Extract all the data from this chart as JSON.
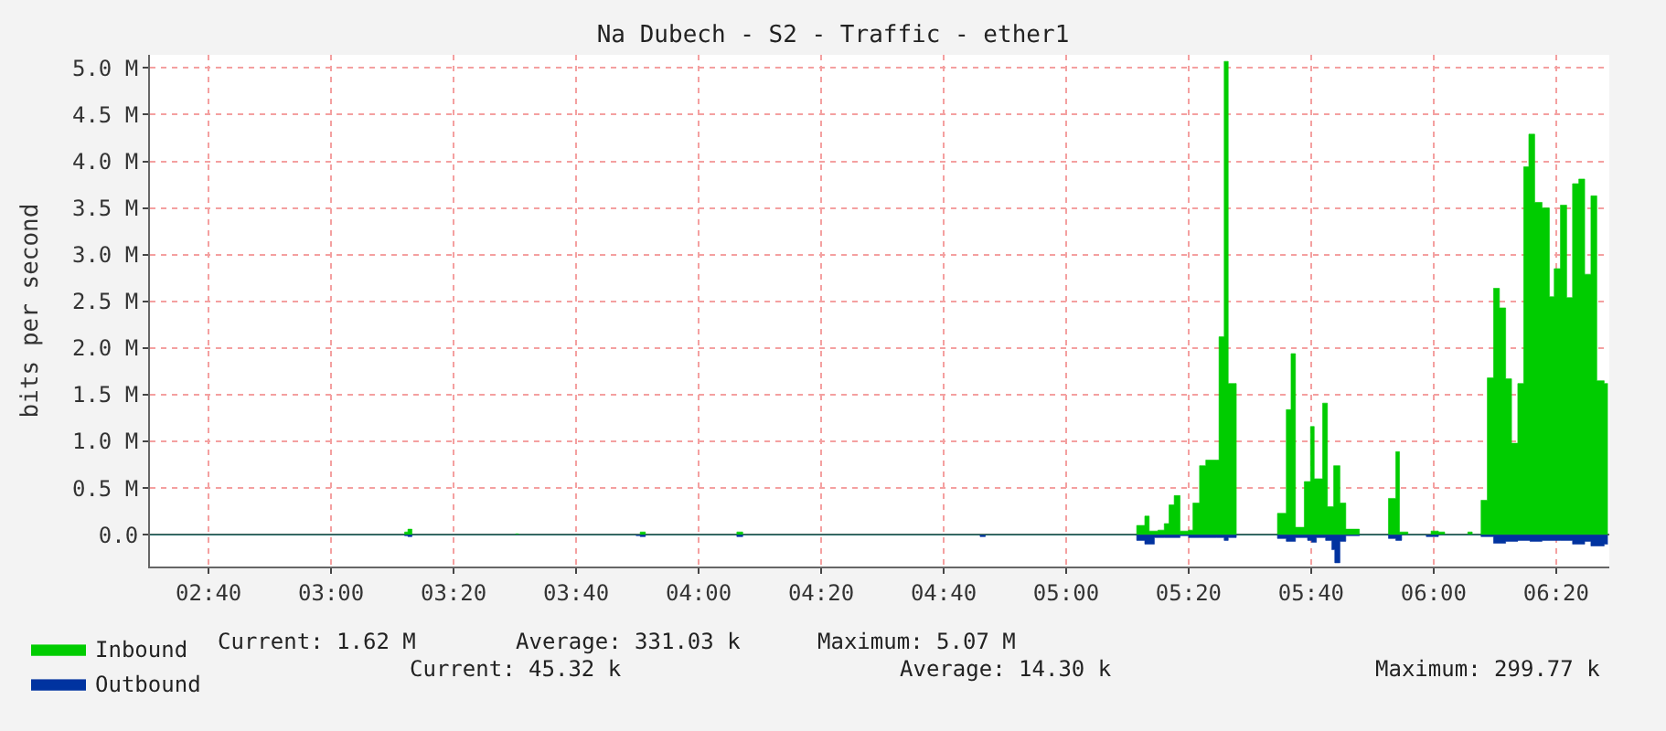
{
  "chart_data": {
    "type": "area",
    "title": "Na Dubech - S2 - Traffic - ether1",
    "ylabel": "bits per second",
    "xlim": [
      2.507,
      6.478
    ],
    "ylim": [
      -340000,
      5140000
    ],
    "xticks": [
      {
        "value": 2.6667,
        "label": "02:40"
      },
      {
        "value": 3.0,
        "label": "03:00"
      },
      {
        "value": 3.3333,
        "label": "03:20"
      },
      {
        "value": 3.6667,
        "label": "03:40"
      },
      {
        "value": 4.0,
        "label": "04:00"
      },
      {
        "value": 4.3333,
        "label": "04:20"
      },
      {
        "value": 4.6667,
        "label": "04:40"
      },
      {
        "value": 5.0,
        "label": "05:00"
      },
      {
        "value": 5.3333,
        "label": "05:20"
      },
      {
        "value": 5.6667,
        "label": "05:40"
      },
      {
        "value": 6.0,
        "label": "06:00"
      },
      {
        "value": 6.3333,
        "label": "06:20"
      }
    ],
    "yticks": [
      {
        "value": 0,
        "label": "0.0"
      },
      {
        "value": 500000,
        "label": "0.5 M"
      },
      {
        "value": 1000000,
        "label": "1.0 M"
      },
      {
        "value": 1500000,
        "label": "1.5 M"
      },
      {
        "value": 2000000,
        "label": "2.0 M"
      },
      {
        "value": 2500000,
        "label": "2.5 M"
      },
      {
        "value": 3000000,
        "label": "3.0 M"
      },
      {
        "value": 3500000,
        "label": "3.5 M"
      },
      {
        "value": 4000000,
        "label": "4.0 M"
      },
      {
        "value": 4500000,
        "label": "4.5 M"
      },
      {
        "value": 5000000,
        "label": "5.0 M"
      }
    ],
    "grid": true,
    "legend": "bottom left",
    "annotations": [
      "Current: 1.62 M",
      "Average: 331.03 k",
      "Maximum: 5.07 M",
      "Current: 45.32 k",
      "Average: 14.30 k",
      "Maximum: 299.77 k"
    ],
    "series": [
      {
        "name": "Inbound",
        "color": "#00cc00",
        "x": [
          2.507,
          3.19,
          3.2,
          3.209,
          3.22,
          3.49,
          3.502,
          3.51,
          3.83,
          3.841,
          3.855,
          4.09,
          4.104,
          4.12,
          5.18,
          5.192,
          5.214,
          5.226,
          5.25,
          5.267,
          5.28,
          5.294,
          5.31,
          5.333,
          5.345,
          5.363,
          5.38,
          5.41,
          5.416,
          5.43,
          5.441,
          5.453,
          5.463,
          5.566,
          5.575,
          5.599,
          5.612,
          5.624,
          5.64,
          5.648,
          5.665,
          5.675,
          5.69,
          5.698,
          5.711,
          5.728,
          5.745,
          5.761,
          5.781,
          5.798,
          5.872,
          5.877,
          5.897,
          5.907,
          5.93,
          5.98,
          5.993,
          6.013,
          6.03,
          6.093,
          6.105,
          6.129,
          6.146,
          6.163,
          6.179,
          6.196,
          6.212,
          6.229,
          6.245,
          6.259,
          6.275,
          6.295,
          6.315,
          6.328,
          6.345,
          6.362,
          6.378,
          6.395,
          6.411,
          6.428,
          6.444,
          6.464,
          6.474
        ],
        "values": [
          0,
          0,
          30000,
          60000,
          0,
          0,
          10000,
          0,
          0,
          30000,
          0,
          0,
          30000,
          0,
          0,
          100000,
          200000,
          40000,
          50000,
          120000,
          320000,
          420000,
          40000,
          50000,
          340000,
          740000,
          800000,
          800000,
          2120000,
          5070000,
          1620000,
          1620000,
          0,
          0,
          230000,
          1340000,
          1940000,
          80000,
          80000,
          570000,
          1160000,
          600000,
          600000,
          1410000,
          300000,
          740000,
          340000,
          60000,
          60000,
          0,
          0,
          390000,
          890000,
          30000,
          0,
          0,
          40000,
          30000,
          0,
          30000,
          0,
          370000,
          1680000,
          2640000,
          2430000,
          1670000,
          980000,
          1620000,
          3940000,
          4290000,
          3560000,
          3500000,
          2550000,
          2850000,
          3530000,
          2540000,
          3760000,
          3810000,
          2790000,
          3630000,
          1650000,
          1620000,
          1620000
        ]
      },
      {
        "name": "Outbound",
        "color": "#0033a0",
        "x": [
          2.507,
          3.2,
          3.209,
          3.22,
          3.83,
          3.841,
          3.855,
          4.09,
          4.104,
          4.12,
          4.75,
          4.766,
          4.78,
          5.18,
          5.192,
          5.214,
          5.24,
          5.267,
          5.31,
          5.333,
          5.363,
          5.41,
          5.43,
          5.441,
          5.453,
          5.463,
          5.566,
          5.575,
          5.599,
          5.624,
          5.657,
          5.668,
          5.681,
          5.706,
          5.723,
          5.731,
          5.745,
          5.761,
          5.798,
          5.877,
          5.897,
          5.913,
          5.98,
          6.0,
          6.013,
          6.129,
          6.163,
          6.196,
          6.229,
          6.262,
          6.295,
          6.345,
          6.378,
          6.411,
          6.428,
          6.464,
          6.474
        ],
        "values": [
          0,
          -10000,
          -20000,
          0,
          -10000,
          -20000,
          0,
          0,
          -20000,
          0,
          0,
          -20000,
          0,
          0,
          -60000,
          -100000,
          -30000,
          -30000,
          -10000,
          -30000,
          -30000,
          -30000,
          -60000,
          -30000,
          -30000,
          0,
          0,
          -40000,
          -70000,
          -30000,
          -60000,
          -80000,
          -30000,
          -60000,
          -160000,
          -300000,
          -70000,
          -10000,
          0,
          -40000,
          -60000,
          0,
          -20000,
          -20000,
          0,
          -20000,
          -90000,
          -70000,
          -60000,
          -70000,
          -60000,
          -60000,
          -100000,
          -70000,
          -120000,
          -100000,
          -100000
        ]
      }
    ]
  }
}
